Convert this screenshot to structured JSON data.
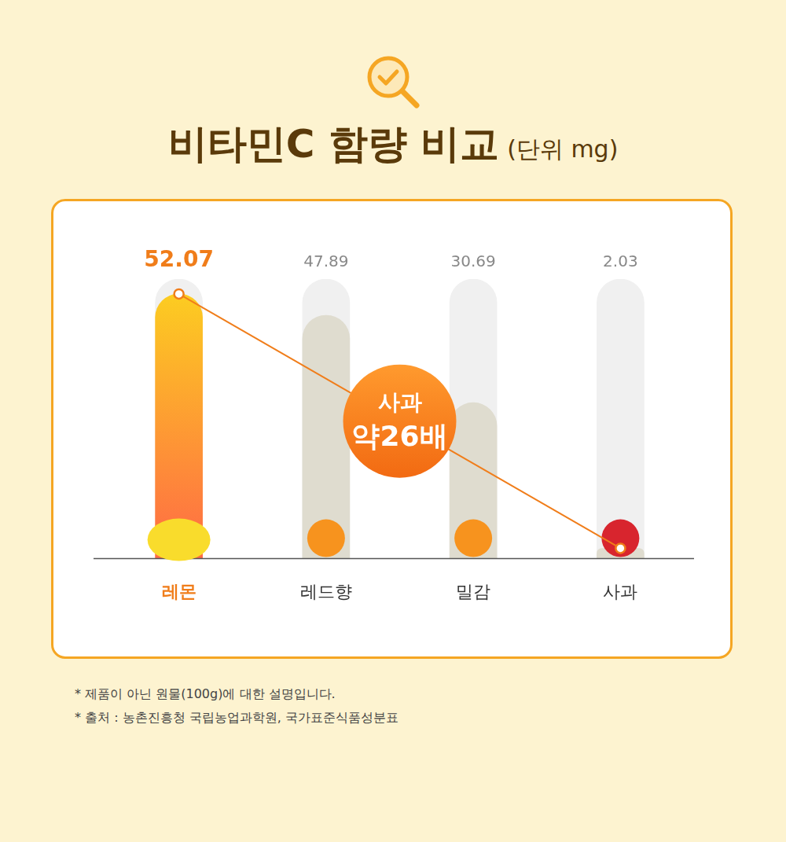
{
  "chart_data": {
    "type": "bar",
    "title": "비타민C 함량 비교",
    "subtitle": "(단위 mg)",
    "categories": [
      "레몬",
      "레드향",
      "밀감",
      "사과"
    ],
    "values": [
      52.07,
      47.89,
      30.69,
      2.03
    ],
    "colors": [
      "#ff6a45",
      "#dfdccf",
      "#dfdccf",
      "#dfdccf"
    ],
    "ylim": [
      0,
      55
    ],
    "grid": false,
    "data_labels": true,
    "tick_labels": "x",
    "annotation": {
      "from": "레몬",
      "to": "사과",
      "label": "사과 약26배"
    }
  },
  "notes": [
    "* 제품이 아닌 원물(100g)에 대한 설명입니다.",
    "* 출처 : 농촌진흥청 국립농업과학원, 국가표준식품성분표"
  ]
}
